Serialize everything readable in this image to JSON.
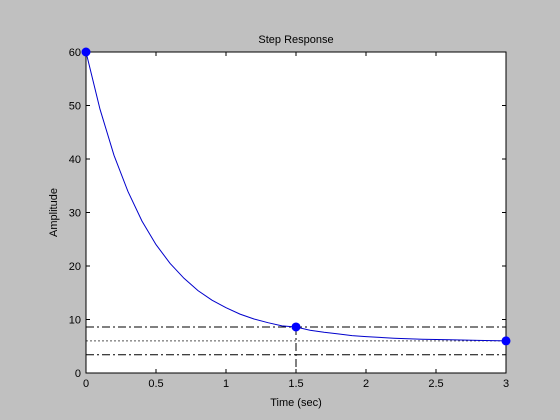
{
  "window": {
    "background": "#c0c0c0"
  },
  "chart_data": {
    "type": "line",
    "title": "Step Response",
    "xlabel": "Time (sec)",
    "ylabel": "Amplitude",
    "xlim": [
      0,
      3
    ],
    "ylim": [
      0,
      60
    ],
    "xticks": [
      0,
      0.5,
      1,
      1.5,
      2,
      2.5,
      3
    ],
    "xtick_labels": [
      "0",
      "0.5",
      "1",
      "1.5",
      "2",
      "2.5",
      "3"
    ],
    "yticks": [
      0,
      10,
      20,
      30,
      40,
      50,
      60
    ],
    "ytick_labels": [
      "0",
      "10",
      "20",
      "30",
      "40",
      "50",
      "60"
    ],
    "grid": false,
    "series": [
      {
        "color": "#0000cc",
        "x": [
          0,
          0.1,
          0.2,
          0.3,
          0.4,
          0.5,
          0.6,
          0.7,
          0.8,
          0.9,
          1.0,
          1.1,
          1.2,
          1.3,
          1.4,
          1.5,
          1.6,
          1.7,
          1.8,
          1.9,
          2.0,
          2.2,
          2.4,
          2.6,
          2.8,
          3.0
        ],
        "y": [
          60,
          49.3,
          40.7,
          33.9,
          28.4,
          24.0,
          20.5,
          17.7,
          15.4,
          13.6,
          12.2,
          11.0,
          10.1,
          9.4,
          8.8,
          8.6,
          8.0,
          7.6,
          7.3,
          7.0,
          6.8,
          6.5,
          6.3,
          6.2,
          6.1,
          6.0
        ]
      }
    ],
    "markers": [
      {
        "x": 0,
        "y": 60
      },
      {
        "x": 1.5,
        "y": 8.6
      },
      {
        "x": 3,
        "y": 6.0
      }
    ],
    "final_value": 6.0,
    "band_upper": 8.6,
    "band_lower": 3.4,
    "settling_time": 1.5,
    "colors": {
      "curve": "#0000cc",
      "marker": "#0000ff",
      "guide": "#000000",
      "final": "#555555"
    }
  }
}
